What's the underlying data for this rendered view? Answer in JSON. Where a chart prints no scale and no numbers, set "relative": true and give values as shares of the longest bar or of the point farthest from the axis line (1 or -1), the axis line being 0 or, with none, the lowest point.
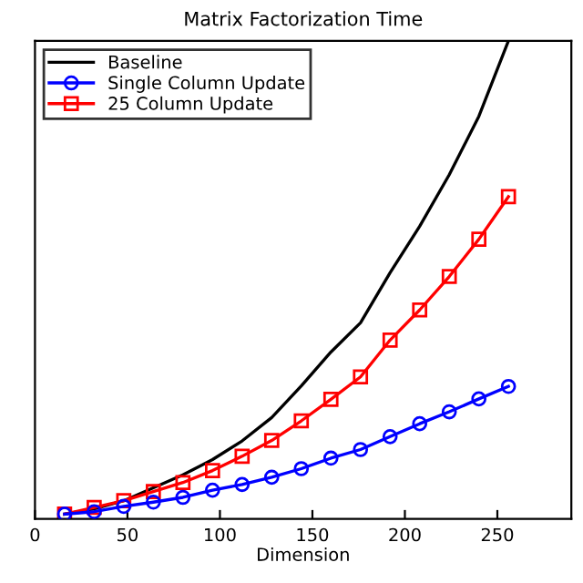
{
  "chart_data": {
    "type": "line",
    "title": "Matrix Factorization Time",
    "xlabel": "Dimension",
    "relative": true,
    "x": [
      16,
      32,
      48,
      64,
      80,
      96,
      112,
      128,
      144,
      160,
      176,
      192,
      208,
      224,
      240,
      256
    ],
    "xlim": [
      0,
      290
    ],
    "xticks": [
      0,
      50,
      100,
      150,
      200,
      250
    ],
    "grid": false,
    "legend": "top left",
    "series": [
      {
        "name": "Baseline",
        "color": "#000000",
        "marker": "none",
        "values": [
          0.01,
          0.021,
          0.038,
          0.065,
          0.092,
          0.124,
          0.163,
          0.212,
          0.278,
          0.349,
          0.41,
          0.515,
          0.612,
          0.72,
          0.842,
          1.0
        ]
      },
      {
        "name": "Single Column Update",
        "color": "#0000ff",
        "marker": "circle",
        "values": [
          0.01,
          0.015,
          0.026,
          0.035,
          0.045,
          0.06,
          0.072,
          0.087,
          0.105,
          0.127,
          0.145,
          0.172,
          0.199,
          0.224,
          0.251,
          0.277
        ]
      },
      {
        "name": "25 Column Update",
        "color": "#ff0000",
        "marker": "square",
        "values": [
          0.01,
          0.024,
          0.038,
          0.057,
          0.076,
          0.101,
          0.131,
          0.164,
          0.205,
          0.25,
          0.297,
          0.374,
          0.437,
          0.507,
          0.585,
          0.674
        ]
      }
    ]
  }
}
